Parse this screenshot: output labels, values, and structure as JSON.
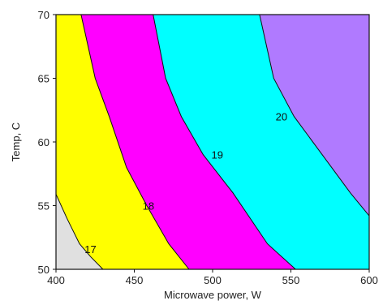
{
  "chart_data": {
    "type": "contour",
    "title": "",
    "xlabel": "Microwave power, W",
    "ylabel": "Temp, C",
    "xlim": [
      400,
      600
    ],
    "ylim": [
      50,
      70
    ],
    "x_ticks": [
      "400",
      "450",
      "500",
      "550",
      "600"
    ],
    "y_ticks": [
      "50",
      "55",
      "60",
      "65",
      "70"
    ],
    "grid": false,
    "contour_levels": [
      {
        "label": "17",
        "line": [
          [
            400,
            55.9
          ],
          [
            407,
            54
          ],
          [
            415,
            52
          ],
          [
            422,
            51
          ],
          [
            430,
            50
          ]
        ],
        "label_pos": [
          422,
          51.6
        ]
      },
      {
        "label": "18",
        "line": [
          [
            416,
            70
          ],
          [
            425,
            65
          ],
          [
            434,
            62
          ],
          [
            445,
            58
          ],
          [
            458,
            55
          ],
          [
            472,
            52
          ],
          [
            485,
            50
          ]
        ],
        "label_pos": [
          459,
          55
        ]
      },
      {
        "label": "19",
        "line": [
          [
            462,
            70
          ],
          [
            470,
            65
          ],
          [
            480,
            62
          ],
          [
            494,
            59
          ],
          [
            513,
            56
          ],
          [
            535,
            52
          ],
          [
            553,
            50
          ]
        ],
        "label_pos": [
          503,
          59
        ]
      },
      {
        "label": "20",
        "line": [
          [
            530,
            70
          ],
          [
            539,
            65
          ],
          [
            552,
            62
          ],
          [
            570,
            59
          ],
          [
            588,
            56
          ],
          [
            600,
            54.2
          ]
        ],
        "label_pos": [
          544,
          62
        ]
      }
    ],
    "regions": [
      {
        "below": "17",
        "color": "#e0e0e0"
      },
      {
        "between": [
          "17",
          "18"
        ],
        "color": "#ffff00"
      },
      {
        "between": [
          "18",
          "19"
        ],
        "color": "#ff00ff"
      },
      {
        "between": [
          "19",
          "20"
        ],
        "color": "#00ffff"
      },
      {
        "above": "20",
        "color": "#b07aff"
      }
    ]
  }
}
